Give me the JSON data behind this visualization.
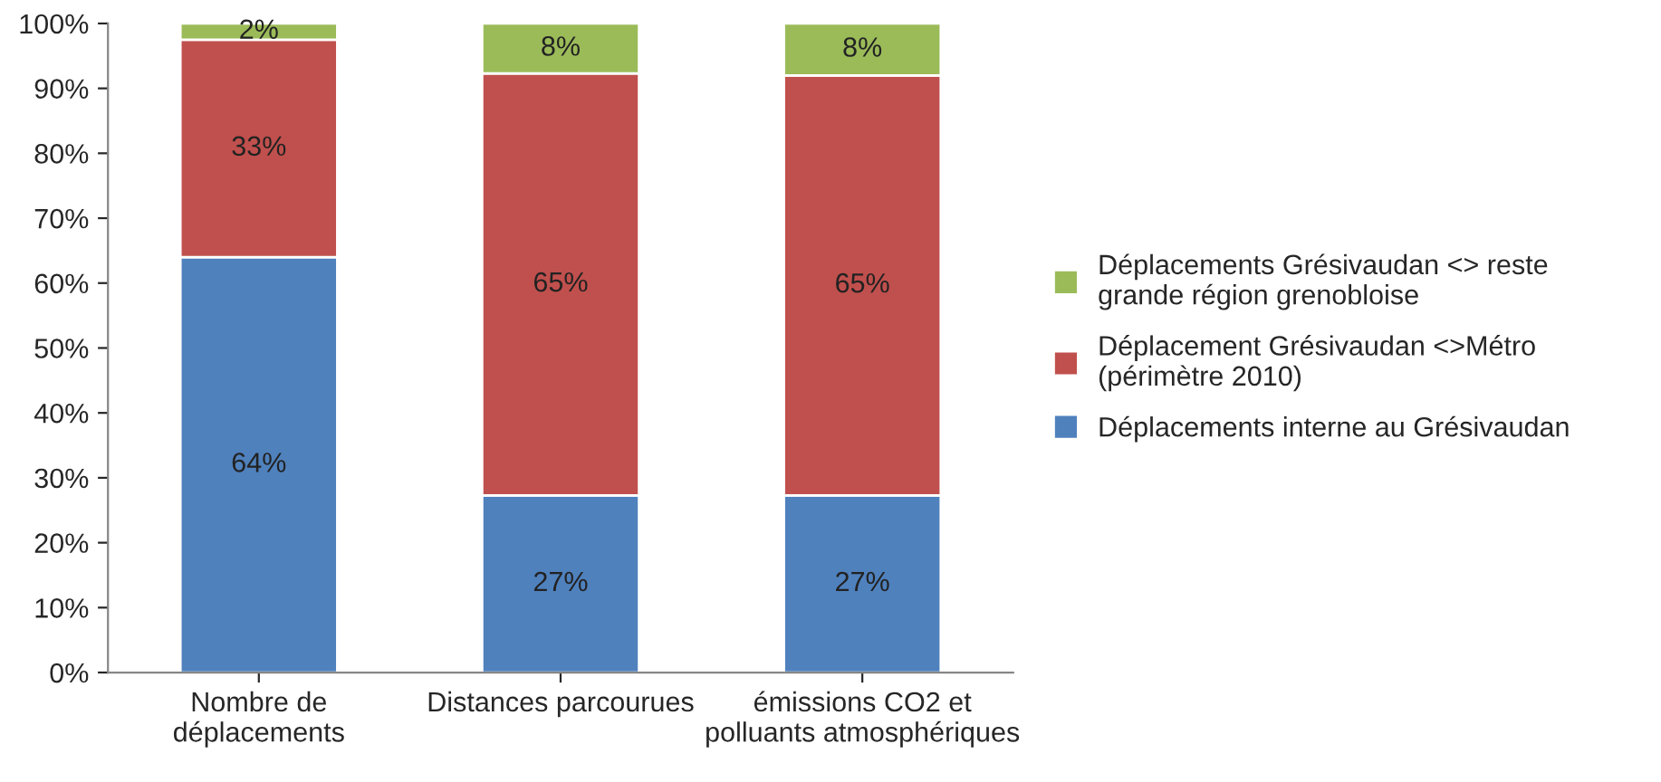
{
  "chart_data": {
    "type": "bar",
    "stacked": true,
    "categories": [
      "Nombre de\ndéplacements",
      "Distances parcourues",
      "émissions CO2 et\npolluants atmosphériques"
    ],
    "series": [
      {
        "name": "Déplacements interne au Grésivaudan",
        "color": "#4f81bd",
        "values": [
          64,
          27.3,
          27.3
        ],
        "value_labels": [
          "64%",
          "27%",
          "27%"
        ]
      },
      {
        "name": "Déplacement Grésivaudan <>Métro\n(périmètre 2010)",
        "color": "#c0504d",
        "values": [
          33.5,
          65,
          64.7
        ],
        "value_labels": [
          "33%",
          "65%",
          "65%"
        ]
      },
      {
        "name": "Déplacements Grésivaudan <> reste\ngrande région grenobloise",
        "color": "#9bbb59",
        "values": [
          2.5,
          7.7,
          8
        ],
        "value_labels": [
          "2%",
          "8%",
          "8%"
        ]
      }
    ],
    "ylim": [
      0,
      100
    ],
    "yticks": [
      {
        "value": 0,
        "label": "0%"
      },
      {
        "value": 10,
        "label": "10%"
      },
      {
        "value": 20,
        "label": "20%"
      },
      {
        "value": 30,
        "label": "30%"
      },
      {
        "value": 40,
        "label": "40%"
      },
      {
        "value": 50,
        "label": "50%"
      },
      {
        "value": 60,
        "label": "60%"
      },
      {
        "value": 70,
        "label": "70%"
      },
      {
        "value": 80,
        "label": "80%"
      },
      {
        "value": 90,
        "label": "90%"
      },
      {
        "value": 100,
        "label": "100%"
      }
    ],
    "grid": false,
    "legend": "right"
  }
}
